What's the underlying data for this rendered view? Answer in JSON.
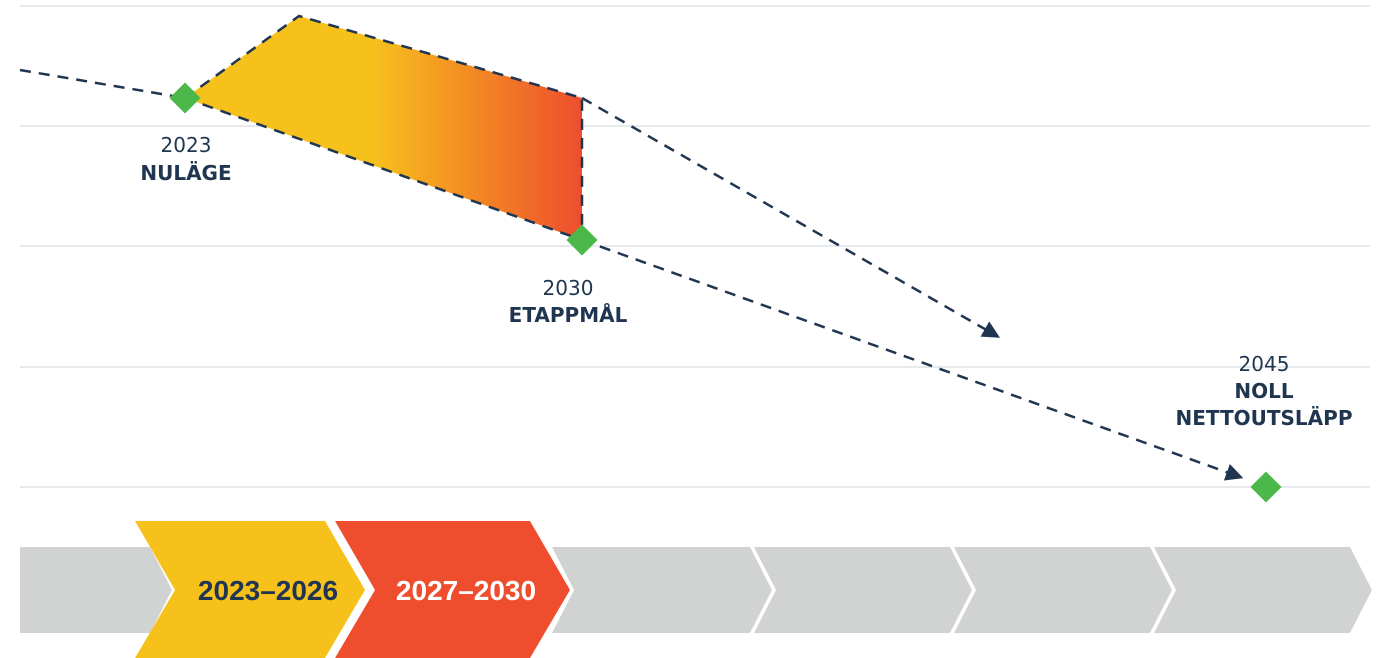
{
  "colors": {
    "grid": "#cfd4d8",
    "trajectory": "#1f3550",
    "milestone": "#4cb849",
    "band_start": "#f7c11c",
    "band_end": "#ee4e2e",
    "chevron_gray": "#d1d3d2",
    "period1_fill": "#f7c11c",
    "period1_text": "#1f3550",
    "period2_fill": "#ee4e2e",
    "period2_text": "#ffffff"
  },
  "milestones": [
    {
      "year": "2023",
      "lines": [
        "NULÄGE"
      ]
    },
    {
      "year": "2030",
      "lines": [
        "ETAPPMÅL"
      ]
    },
    {
      "year": "2045",
      "lines": [
        "NOLL",
        "NETTOUTSLÄPP"
      ]
    }
  ],
  "periods": [
    {
      "label": "2023–2026"
    },
    {
      "label": "2027–2030"
    }
  ]
}
